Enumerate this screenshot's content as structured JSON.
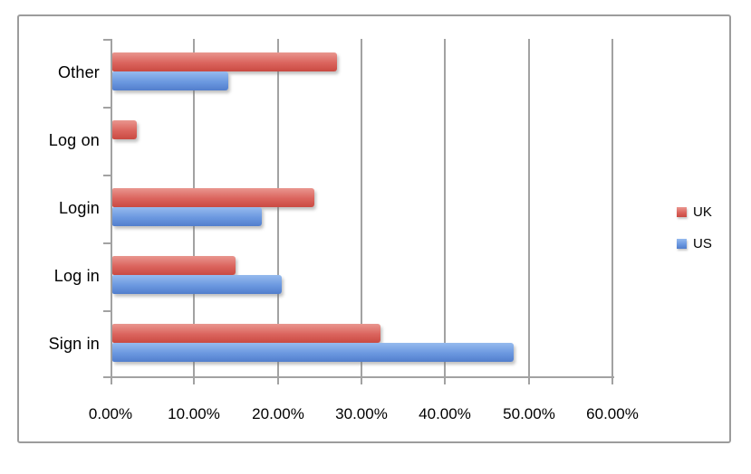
{
  "chart_data": {
    "type": "bar",
    "orientation": "horizontal",
    "title": "",
    "xlabel": "",
    "ylabel": "",
    "categories": [
      "Other",
      "Log on",
      "Login",
      "Log in",
      "Sign in"
    ],
    "category_order": "top-to-bottom",
    "series": [
      {
        "name": "UK",
        "values": [
          26.9,
          2.9,
          24.2,
          14.7,
          32.0
        ],
        "unit": "%",
        "color": {
          "top": "#e9968f",
          "mid": "#db645d",
          "bottom": "#c94a42"
        }
      },
      {
        "name": "US",
        "values": [
          13.9,
          0,
          17.9,
          20.3,
          48.0
        ],
        "unit": "%",
        "color": {
          "top": "#96baee",
          "mid": "#6b98e0",
          "bottom": "#527ecc"
        }
      }
    ],
    "x_tick_labels": [
      "0.00%",
      "10.00%",
      "20.00%",
      "30.00%",
      "40.00%",
      "50.00%",
      "60.00%"
    ],
    "xlim": [
      0,
      60
    ],
    "grid": true,
    "legend_position": "right-middle"
  },
  "colors": {
    "gridline": "#a2a2a2",
    "axis": "#a2a2a2",
    "frame_border": "#9c9c9c",
    "background": "#ffffff",
    "text": "#000000"
  }
}
